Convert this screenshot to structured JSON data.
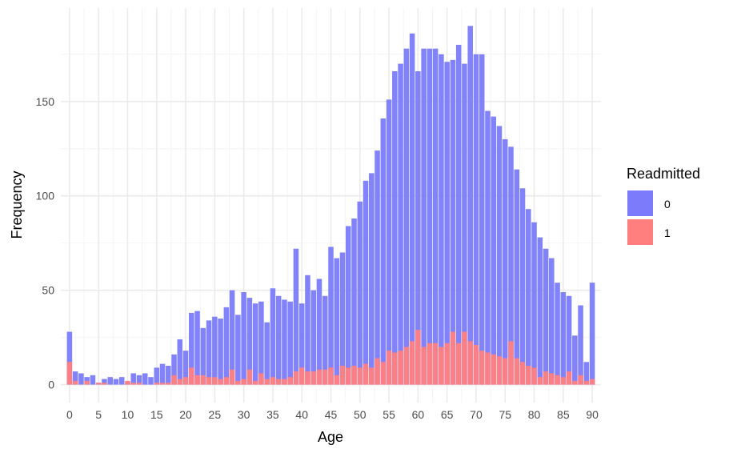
{
  "chart_data": {
    "type": "bar",
    "xlabel": "Age",
    "ylabel": "Frequency",
    "xlim": [
      -1.5,
      91.5
    ],
    "ylim": [
      -9.5,
      199.5
    ],
    "x_ticks": [
      0,
      5,
      10,
      15,
      20,
      25,
      30,
      35,
      40,
      45,
      50,
      55,
      60,
      65,
      70,
      75,
      80,
      85,
      90
    ],
    "y_ticks": [
      0,
      50,
      100,
      150
    ],
    "grid": true,
    "legend": {
      "title": "Readmitted",
      "position": "right"
    },
    "x": [
      0,
      1,
      2,
      3,
      4,
      5,
      6,
      7,
      8,
      9,
      10,
      11,
      12,
      13,
      14,
      15,
      16,
      17,
      18,
      19,
      20,
      21,
      22,
      23,
      24,
      25,
      26,
      27,
      28,
      29,
      30,
      31,
      32,
      33,
      34,
      35,
      36,
      37,
      38,
      39,
      40,
      41,
      42,
      43,
      44,
      45,
      46,
      47,
      48,
      49,
      50,
      51,
      52,
      53,
      54,
      55,
      56,
      57,
      58,
      59,
      60,
      61,
      62,
      63,
      64,
      65,
      66,
      67,
      68,
      69,
      70,
      71,
      72,
      73,
      74,
      75,
      76,
      77,
      78,
      79,
      80,
      81,
      82,
      83,
      84,
      85,
      86,
      87,
      88,
      89,
      90
    ],
    "series": [
      {
        "name": "0",
        "color": "#7b7bfb",
        "values": [
          28,
          7,
          6,
          4,
          5,
          1,
          3,
          4,
          3,
          4,
          1,
          6,
          5,
          6,
          4,
          9,
          11,
          10,
          16,
          24,
          18,
          38,
          39,
          30,
          34,
          36,
          35,
          41,
          50,
          37,
          49,
          46,
          43,
          44,
          33,
          51,
          47,
          45,
          44,
          72,
          43,
          58,
          50,
          56,
          47,
          73,
          67,
          70,
          84,
          88,
          97,
          108,
          112,
          124,
          141,
          151,
          166,
          170,
          178,
          186,
          166,
          178,
          178,
          178,
          175,
          171,
          172,
          180,
          170,
          190,
          175,
          175,
          145,
          142,
          137,
          130,
          126,
          114,
          104,
          93,
          86,
          78,
          72,
          67,
          54,
          49,
          47,
          26,
          42,
          12,
          54
        ]
      },
      {
        "name": "1",
        "color": "#ff7f7f",
        "values": [
          12,
          2,
          0,
          2,
          0,
          1,
          1,
          0,
          0,
          0,
          2,
          1,
          1,
          0,
          0,
          1,
          1,
          1,
          5,
          3,
          4,
          9,
          5,
          5,
          4,
          4,
          3,
          4,
          8,
          2,
          3,
          8,
          2,
          6,
          3,
          4,
          3,
          3,
          4,
          7,
          9,
          7,
          7,
          8,
          8,
          9,
          5,
          10,
          9,
          10,
          9,
          11,
          9,
          14,
          12,
          18,
          17,
          18,
          20,
          23,
          29,
          20,
          22,
          22,
          20,
          22,
          28,
          22,
          28,
          23,
          21,
          18,
          17,
          16,
          15,
          14,
          23,
          14,
          12,
          10,
          9,
          4,
          7,
          6,
          5,
          4,
          7,
          2,
          5,
          2,
          3
        ]
      }
    ]
  }
}
